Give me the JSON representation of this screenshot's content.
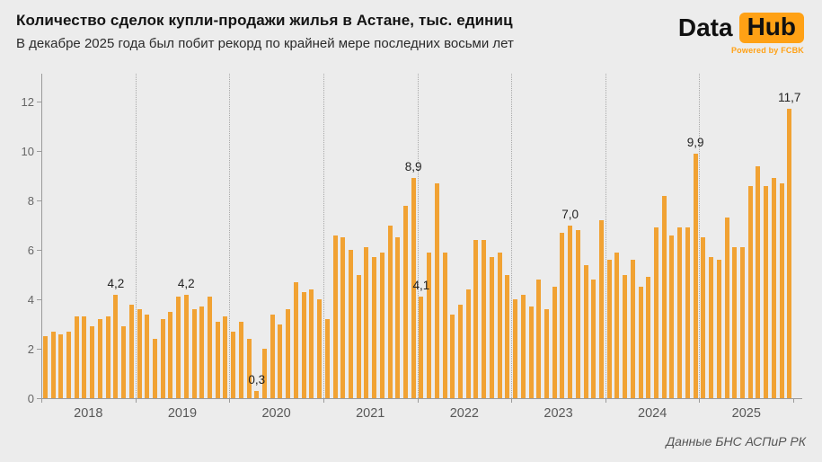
{
  "header": {
    "title": "Количество сделок купли-продажи жилья в Астане, тыс. единиц",
    "subtitle": "В декабре 2025 года был побит рекорд по крайней мере последних восьми лет"
  },
  "logo": {
    "part1": "Data",
    "part2": "Hub",
    "tagline": "Powered by FCBK"
  },
  "footer": {
    "source": "Данные БНС АСПиР РК"
  },
  "colors": {
    "background": "#ECECEC",
    "bar": "#F1A233",
    "logo_orange": "#FFA115",
    "axis": "#9B9B9B",
    "annotation_text": "#222222"
  },
  "chart_data": {
    "type": "bar",
    "title": "Количество сделок купли-продажи жилья в Астане, тыс. единиц",
    "unit": "тыс. единиц",
    "x_structure": "monthly bars January–December grouped by year",
    "xlabel": "",
    "ylabel": "",
    "ylim": [
      0,
      13.1
    ],
    "yticks": [
      0,
      2,
      4,
      6,
      8,
      10,
      12
    ],
    "grid": "no horizontal gridlines; dotted vertical separators between years",
    "legend": "none",
    "series": [
      {
        "name": "2018",
        "values": [
          2.5,
          2.7,
          2.6,
          2.7,
          3.3,
          3.3,
          2.9,
          3.2,
          3.3,
          4.2,
          2.9,
          3.8
        ]
      },
      {
        "name": "2019",
        "values": [
          3.6,
          3.4,
          2.4,
          3.2,
          3.5,
          4.1,
          4.2,
          3.6,
          3.7,
          4.1,
          3.1,
          3.3
        ]
      },
      {
        "name": "2020",
        "values": [
          2.7,
          3.1,
          2.4,
          0.3,
          2.0,
          3.4,
          3.0,
          3.6,
          4.7,
          4.3,
          4.4,
          4.0
        ]
      },
      {
        "name": "2021",
        "values": [
          3.2,
          6.6,
          6.5,
          6.0,
          5.0,
          6.1,
          5.7,
          5.9,
          7.0,
          6.5,
          7.8,
          8.9
        ]
      },
      {
        "name": "2022",
        "values": [
          4.1,
          5.9,
          8.7,
          5.9,
          3.4,
          3.8,
          4.4,
          6.4,
          6.4,
          5.7,
          5.9,
          5.0
        ]
      },
      {
        "name": "2023",
        "values": [
          4.0,
          4.2,
          3.7,
          4.8,
          3.6,
          4.5,
          6.7,
          7.0,
          6.8,
          5.4,
          4.8,
          7.2
        ]
      },
      {
        "name": "2024",
        "values": [
          5.6,
          5.9,
          5.0,
          5.6,
          4.5,
          4.9,
          6.9,
          8.2,
          6.6,
          6.9,
          6.9,
          9.9
        ]
      },
      {
        "name": "2025",
        "values": [
          6.5,
          5.7,
          5.6,
          7.3,
          6.1,
          6.1,
          8.6,
          9.4,
          8.6,
          8.9,
          8.7,
          11.7
        ]
      }
    ],
    "annotations": [
      {
        "year": "2018",
        "month": 10,
        "label": "4,2"
      },
      {
        "year": "2019",
        "month": 7,
        "label": "4,2"
      },
      {
        "year": "2020",
        "month": 4,
        "label": "0,3"
      },
      {
        "year": "2021",
        "month": 12,
        "label": "8,9"
      },
      {
        "year": "2022",
        "month": 1,
        "label": "4,1"
      },
      {
        "year": "2023",
        "month": 8,
        "label": "7,0"
      },
      {
        "year": "2024",
        "month": 12,
        "label": "9,9"
      },
      {
        "year": "2025",
        "month": 12,
        "label": "11,7"
      }
    ]
  }
}
